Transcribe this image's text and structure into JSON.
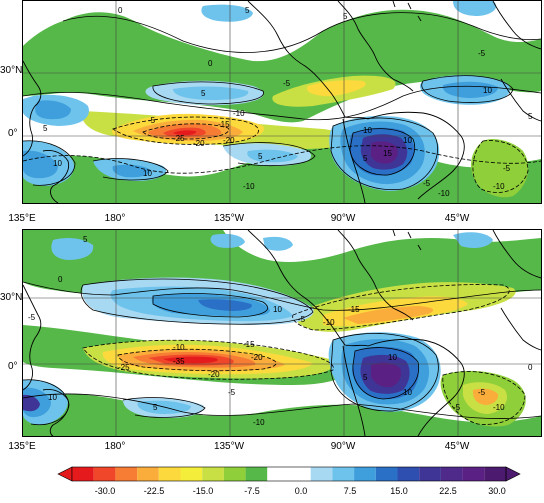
{
  "panels": [
    {
      "id": "top",
      "lat_labels": [
        "30°N",
        "0°"
      ],
      "lon_labels": [
        "135°E",
        "180°",
        "135°W",
        "90°W",
        "45°W"
      ],
      "contour_labels": [
        "0",
        "0",
        "5",
        "5",
        "5",
        "10",
        "5",
        "-5",
        "-5",
        "-10",
        "-15",
        "-20",
        "-20",
        "-25",
        "-5",
        "-10",
        "10",
        "10",
        "5",
        "5",
        "-5",
        "-10",
        "-5",
        "-10",
        "10",
        "15",
        "5",
        "10"
      ]
    },
    {
      "id": "bottom",
      "lat_labels": [
        "30°N",
        "0°"
      ],
      "lon_labels": [
        "135°E",
        "180°",
        "135°W",
        "90°W",
        "45°W"
      ],
      "contour_labels": [
        "5",
        "-5",
        "0",
        "-5",
        "-10",
        "-15",
        "-10",
        "-15",
        "-20",
        "-25",
        "-35",
        "-20",
        "10",
        "-5",
        "-10",
        "5",
        "10",
        "-5",
        "-10",
        "0",
        "10",
        "5",
        "10",
        "-5"
      ]
    }
  ],
  "colorbar": {
    "ticks": [
      "-30.0",
      "-22.5",
      "-15.0",
      "-7.5",
      "0.0",
      "7.5",
      "15.0",
      "22.5",
      "30.0"
    ],
    "colors": [
      "#e41a1c",
      "#f0462a",
      "#f77c34",
      "#fbad3b",
      "#fcd93d",
      "#f4ee3a",
      "#c9e045",
      "#8fcf3a",
      "#56b848",
      "#ffffff",
      "#ffffff",
      "#a8d9f3",
      "#6ec3ec",
      "#3e9fdc",
      "#2a70c6",
      "#2f4fb0",
      "#3e3596",
      "#4f2a8a",
      "#5b2084",
      "#4c1a6e"
    ]
  }
}
